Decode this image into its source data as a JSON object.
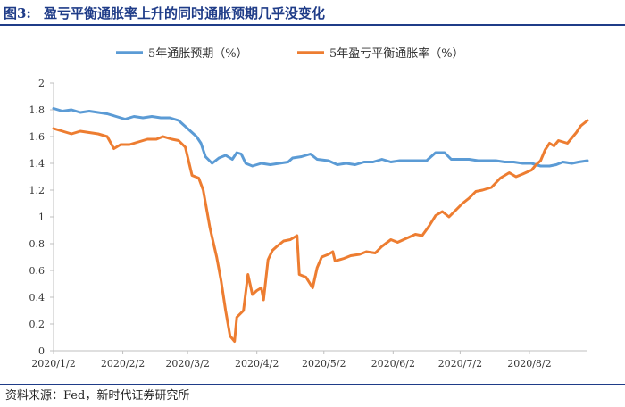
{
  "figure": {
    "number": "图3:",
    "title": "盈亏平衡通胀率上升的同时通胀预期几乎没变化",
    "source": "资料来源：Fed，新时代证券研究所"
  },
  "colors": {
    "series1": "#5b9bd5",
    "series2": "#ed7d31",
    "axis": "#bfbfbf"
  },
  "chart_data": {
    "type": "line",
    "title": "",
    "xlabel": "",
    "ylabel": "",
    "ylim": [
      0,
      2
    ],
    "yticks": [
      "0",
      "0.2",
      "0.4",
      "0.6",
      "0.8",
      "1",
      "1.2",
      "1.4",
      "1.6",
      "1.8",
      "2"
    ],
    "xticks": [
      "2020/1/2",
      "2020/2/2",
      "2020/3/2",
      "2020/4/2",
      "2020/5/2",
      "2020/6/2",
      "2020/7/2",
      "2020/8/2"
    ],
    "xrange": [
      "2020-01-02",
      "2020-08-28"
    ],
    "grid": false,
    "legend_position": "top-center",
    "series": [
      {
        "name": "5年通胀预期（%）",
        "color": "#5b9bd5",
        "points": [
          [
            "2020-01-02",
            1.81
          ],
          [
            "2020-01-06",
            1.79
          ],
          [
            "2020-01-10",
            1.8
          ],
          [
            "2020-01-14",
            1.78
          ],
          [
            "2020-01-18",
            1.79
          ],
          [
            "2020-01-22",
            1.78
          ],
          [
            "2020-01-26",
            1.77
          ],
          [
            "2020-01-30",
            1.75
          ],
          [
            "2020-02-03",
            1.73
          ],
          [
            "2020-02-07",
            1.75
          ],
          [
            "2020-02-11",
            1.74
          ],
          [
            "2020-02-15",
            1.75
          ],
          [
            "2020-02-19",
            1.74
          ],
          [
            "2020-02-23",
            1.74
          ],
          [
            "2020-02-27",
            1.72
          ],
          [
            "2020-03-02",
            1.66
          ],
          [
            "2020-03-06",
            1.6
          ],
          [
            "2020-03-08",
            1.55
          ],
          [
            "2020-03-10",
            1.45
          ],
          [
            "2020-03-13",
            1.4
          ],
          [
            "2020-03-16",
            1.44
          ],
          [
            "2020-03-19",
            1.46
          ],
          [
            "2020-03-22",
            1.43
          ],
          [
            "2020-03-24",
            1.48
          ],
          [
            "2020-03-26",
            1.47
          ],
          [
            "2020-03-28",
            1.4
          ],
          [
            "2020-03-31",
            1.38
          ],
          [
            "2020-04-04",
            1.4
          ],
          [
            "2020-04-08",
            1.39
          ],
          [
            "2020-04-12",
            1.4
          ],
          [
            "2020-04-16",
            1.41
          ],
          [
            "2020-04-18",
            1.44
          ],
          [
            "2020-04-22",
            1.45
          ],
          [
            "2020-04-26",
            1.47
          ],
          [
            "2020-04-29",
            1.43
          ],
          [
            "2020-05-04",
            1.42
          ],
          [
            "2020-05-08",
            1.39
          ],
          [
            "2020-05-12",
            1.4
          ],
          [
            "2020-05-16",
            1.39
          ],
          [
            "2020-05-20",
            1.41
          ],
          [
            "2020-05-24",
            1.41
          ],
          [
            "2020-05-28",
            1.43
          ],
          [
            "2020-06-01",
            1.41
          ],
          [
            "2020-06-05",
            1.42
          ],
          [
            "2020-06-09",
            1.42
          ],
          [
            "2020-06-13",
            1.42
          ],
          [
            "2020-06-17",
            1.42
          ],
          [
            "2020-06-21",
            1.48
          ],
          [
            "2020-06-25",
            1.48
          ],
          [
            "2020-06-28",
            1.43
          ],
          [
            "2020-07-02",
            1.43
          ],
          [
            "2020-07-06",
            1.43
          ],
          [
            "2020-07-10",
            1.42
          ],
          [
            "2020-07-14",
            1.42
          ],
          [
            "2020-07-18",
            1.42
          ],
          [
            "2020-07-22",
            1.41
          ],
          [
            "2020-07-26",
            1.41
          ],
          [
            "2020-07-30",
            1.4
          ],
          [
            "2020-08-03",
            1.4
          ],
          [
            "2020-08-07",
            1.38
          ],
          [
            "2020-08-11",
            1.38
          ],
          [
            "2020-08-14",
            1.39
          ],
          [
            "2020-08-17",
            1.41
          ],
          [
            "2020-08-21",
            1.4
          ],
          [
            "2020-08-24",
            1.41
          ],
          [
            "2020-08-28",
            1.42
          ]
        ]
      },
      {
        "name": "5年盈亏平衡通胀率（%）",
        "color": "#ed7d31",
        "points": [
          [
            "2020-01-02",
            1.66
          ],
          [
            "2020-01-06",
            1.64
          ],
          [
            "2020-01-10",
            1.62
          ],
          [
            "2020-01-14",
            1.64
          ],
          [
            "2020-01-18",
            1.63
          ],
          [
            "2020-01-22",
            1.62
          ],
          [
            "2020-01-26",
            1.6
          ],
          [
            "2020-01-29",
            1.51
          ],
          [
            "2020-02-01",
            1.54
          ],
          [
            "2020-02-05",
            1.54
          ],
          [
            "2020-02-09",
            1.56
          ],
          [
            "2020-02-13",
            1.58
          ],
          [
            "2020-02-17",
            1.58
          ],
          [
            "2020-02-20",
            1.6
          ],
          [
            "2020-02-24",
            1.58
          ],
          [
            "2020-02-27",
            1.57
          ],
          [
            "2020-03-01",
            1.52
          ],
          [
            "2020-03-04",
            1.31
          ],
          [
            "2020-03-07",
            1.29
          ],
          [
            "2020-03-09",
            1.2
          ],
          [
            "2020-03-12",
            0.92
          ],
          [
            "2020-03-15",
            0.7
          ],
          [
            "2020-03-17",
            0.52
          ],
          [
            "2020-03-19",
            0.3
          ],
          [
            "2020-03-21",
            0.11
          ],
          [
            "2020-03-23",
            0.07
          ],
          [
            "2020-03-24",
            0.25
          ],
          [
            "2020-03-27",
            0.3
          ],
          [
            "2020-03-29",
            0.57
          ],
          [
            "2020-03-31",
            0.42
          ],
          [
            "2020-04-02",
            0.45
          ],
          [
            "2020-04-04",
            0.47
          ],
          [
            "2020-04-05",
            0.38
          ],
          [
            "2020-04-07",
            0.68
          ],
          [
            "2020-04-09",
            0.75
          ],
          [
            "2020-04-11",
            0.78
          ],
          [
            "2020-04-14",
            0.82
          ],
          [
            "2020-04-17",
            0.83
          ],
          [
            "2020-04-20",
            0.86
          ],
          [
            "2020-04-21",
            0.57
          ],
          [
            "2020-04-24",
            0.55
          ],
          [
            "2020-04-27",
            0.47
          ],
          [
            "2020-04-29",
            0.62
          ],
          [
            "2020-05-01",
            0.7
          ],
          [
            "2020-05-04",
            0.72
          ],
          [
            "2020-05-06",
            0.74
          ],
          [
            "2020-05-07",
            0.67
          ],
          [
            "2020-05-11",
            0.69
          ],
          [
            "2020-05-14",
            0.71
          ],
          [
            "2020-05-18",
            0.72
          ],
          [
            "2020-05-21",
            0.74
          ],
          [
            "2020-05-25",
            0.73
          ],
          [
            "2020-05-28",
            0.78
          ],
          [
            "2020-06-01",
            0.83
          ],
          [
            "2020-06-04",
            0.81
          ],
          [
            "2020-06-08",
            0.84
          ],
          [
            "2020-06-12",
            0.87
          ],
          [
            "2020-06-15",
            0.86
          ],
          [
            "2020-06-18",
            0.93
          ],
          [
            "2020-06-21",
            1.01
          ],
          [
            "2020-06-24",
            1.04
          ],
          [
            "2020-06-27",
            1.0
          ],
          [
            "2020-06-30",
            1.05
          ],
          [
            "2020-07-03",
            1.1
          ],
          [
            "2020-07-06",
            1.14
          ],
          [
            "2020-07-09",
            1.19
          ],
          [
            "2020-07-12",
            1.2
          ],
          [
            "2020-07-16",
            1.22
          ],
          [
            "2020-07-20",
            1.29
          ],
          [
            "2020-07-24",
            1.33
          ],
          [
            "2020-07-27",
            1.3
          ],
          [
            "2020-07-30",
            1.32
          ],
          [
            "2020-08-03",
            1.35
          ],
          [
            "2020-08-05",
            1.39
          ],
          [
            "2020-08-07",
            1.42
          ],
          [
            "2020-08-09",
            1.5
          ],
          [
            "2020-08-11",
            1.55
          ],
          [
            "2020-08-13",
            1.53
          ],
          [
            "2020-08-15",
            1.57
          ],
          [
            "2020-08-17",
            1.56
          ],
          [
            "2020-08-19",
            1.55
          ],
          [
            "2020-08-21",
            1.59
          ],
          [
            "2020-08-23",
            1.63
          ],
          [
            "2020-08-25",
            1.68
          ],
          [
            "2020-08-28",
            1.72
          ]
        ]
      }
    ]
  }
}
